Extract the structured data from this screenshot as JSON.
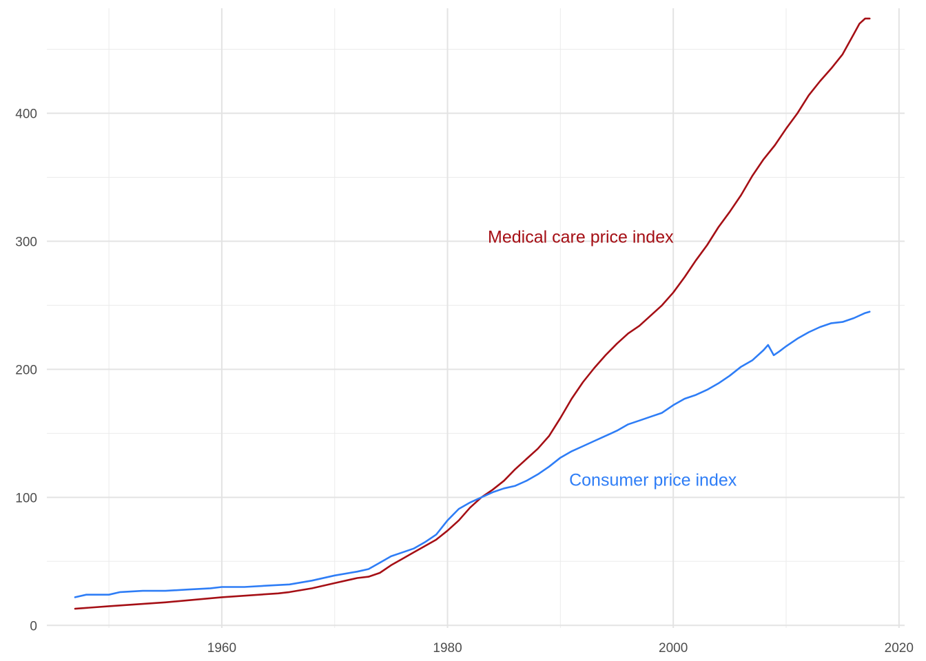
{
  "chart_data": {
    "type": "line",
    "title": "",
    "xlabel": "",
    "ylabel": "",
    "xlim": [
      1944.5,
      2020.5
    ],
    "ylim": [
      -2,
      482
    ],
    "x_ticks": [
      1960,
      1980,
      2000,
      2020
    ],
    "y_ticks": [
      0,
      100,
      200,
      300,
      400
    ],
    "x_minor_ticks": [
      1950,
      1970,
      1990,
      2010
    ],
    "y_minor_ticks": [
      50,
      150,
      250,
      350,
      450
    ],
    "grid": true,
    "legend": "none",
    "series": [
      {
        "name": "Medical care price index",
        "color": "#a50f15",
        "label_anchor": {
          "x": 1991.8,
          "y": 299
        },
        "points": [
          [
            1947,
            13
          ],
          [
            1950,
            15
          ],
          [
            1955,
            18
          ],
          [
            1960,
            22
          ],
          [
            1965,
            25
          ],
          [
            1966,
            26
          ],
          [
            1968,
            29
          ],
          [
            1970,
            33
          ],
          [
            1972,
            37
          ],
          [
            1973,
            38
          ],
          [
            1974,
            41
          ],
          [
            1975,
            47
          ],
          [
            1976,
            52
          ],
          [
            1977,
            57
          ],
          [
            1978,
            62
          ],
          [
            1979,
            67
          ],
          [
            1980,
            74
          ],
          [
            1981,
            82
          ],
          [
            1982,
            92
          ],
          [
            1983,
            100
          ],
          [
            1984,
            106
          ],
          [
            1985,
            113
          ],
          [
            1986,
            122
          ],
          [
            1987,
            130
          ],
          [
            1988,
            138
          ],
          [
            1989,
            148
          ],
          [
            1990,
            162
          ],
          [
            1991,
            177
          ],
          [
            1992,
            190
          ],
          [
            1993,
            201
          ],
          [
            1994,
            211
          ],
          [
            1995,
            220
          ],
          [
            1996,
            228
          ],
          [
            1997,
            234
          ],
          [
            1998,
            242
          ],
          [
            1999,
            250
          ],
          [
            2000,
            260
          ],
          [
            2001,
            272
          ],
          [
            2002,
            285
          ],
          [
            2003,
            297
          ],
          [
            2004,
            311
          ],
          [
            2005,
            323
          ],
          [
            2006,
            336
          ],
          [
            2007,
            351
          ],
          [
            2008,
            364
          ],
          [
            2009,
            375
          ],
          [
            2010,
            388
          ],
          [
            2011,
            400
          ],
          [
            2012,
            414
          ],
          [
            2013,
            425
          ],
          [
            2014,
            435
          ],
          [
            2015,
            446
          ],
          [
            2016,
            462
          ],
          [
            2016.5,
            470
          ],
          [
            2017,
            474
          ],
          [
            2017.4,
            474
          ]
        ]
      },
      {
        "name": "Consumer price index",
        "color": "#2e7df6",
        "label_anchor": {
          "x": 1998.2,
          "y": 109
        },
        "points": [
          [
            1947,
            22
          ],
          [
            1948,
            24
          ],
          [
            1949,
            24
          ],
          [
            1950,
            24
          ],
          [
            1951,
            26
          ],
          [
            1953,
            27
          ],
          [
            1955,
            27
          ],
          [
            1957,
            28
          ],
          [
            1959,
            29
          ],
          [
            1960,
            30
          ],
          [
            1962,
            30
          ],
          [
            1964,
            31
          ],
          [
            1966,
            32
          ],
          [
            1968,
            35
          ],
          [
            1970,
            39
          ],
          [
            1972,
            42
          ],
          [
            1973,
            44
          ],
          [
            1974,
            49
          ],
          [
            1975,
            54
          ],
          [
            1976,
            57
          ],
          [
            1977,
            60
          ],
          [
            1978,
            65
          ],
          [
            1979,
            71
          ],
          [
            1980,
            82
          ],
          [
            1981,
            91
          ],
          [
            1982,
            96
          ],
          [
            1983,
            100
          ],
          [
            1984,
            104
          ],
          [
            1985,
            107
          ],
          [
            1986,
            109
          ],
          [
            1987,
            113
          ],
          [
            1988,
            118
          ],
          [
            1989,
            124
          ],
          [
            1990,
            131
          ],
          [
            1991,
            136
          ],
          [
            1992,
            140
          ],
          [
            1993,
            144
          ],
          [
            1994,
            148
          ],
          [
            1995,
            152
          ],
          [
            1996,
            157
          ],
          [
            1997,
            160
          ],
          [
            1998,
            163
          ],
          [
            1999,
            166
          ],
          [
            2000,
            172
          ],
          [
            2001,
            177
          ],
          [
            2002,
            180
          ],
          [
            2003,
            184
          ],
          [
            2004,
            189
          ],
          [
            2005,
            195
          ],
          [
            2006,
            202
          ],
          [
            2007,
            207
          ],
          [
            2008,
            215
          ],
          [
            2008.4,
            219
          ],
          [
            2008.9,
            211
          ],
          [
            2009.4,
            214
          ],
          [
            2010,
            218
          ],
          [
            2011,
            224
          ],
          [
            2012,
            229
          ],
          [
            2013,
            233
          ],
          [
            2014,
            236
          ],
          [
            2015,
            237
          ],
          [
            2016,
            240
          ],
          [
            2017,
            244
          ],
          [
            2017.4,
            245
          ]
        ]
      }
    ]
  }
}
